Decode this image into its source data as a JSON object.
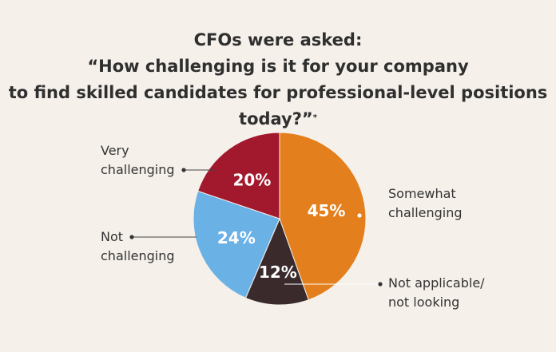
{
  "title": {
    "line1": "CFOs were asked:",
    "line2": "“How challenging is it for your company",
    "line3": "to find skilled candidates for professional-level positions today?”",
    "footnote_mark": "*"
  },
  "chart_data": {
    "type": "pie",
    "slices": [
      {
        "label_lines": [
          "Somewhat",
          "challenging"
        ],
        "value": 45,
        "display": "45%",
        "color": "#e37f1c"
      },
      {
        "label_lines": [
          "Not applicable/",
          "not looking"
        ],
        "value": 12,
        "display": "12%",
        "color": "#3a2a2b"
      },
      {
        "label_lines": [
          "Not",
          "challenging"
        ],
        "value": 24,
        "display": "24%",
        "color": "#6ab1e6"
      },
      {
        "label_lines": [
          "Very",
          "challenging"
        ],
        "value": 20,
        "display": "20%",
        "color": "#a2182c"
      }
    ]
  }
}
